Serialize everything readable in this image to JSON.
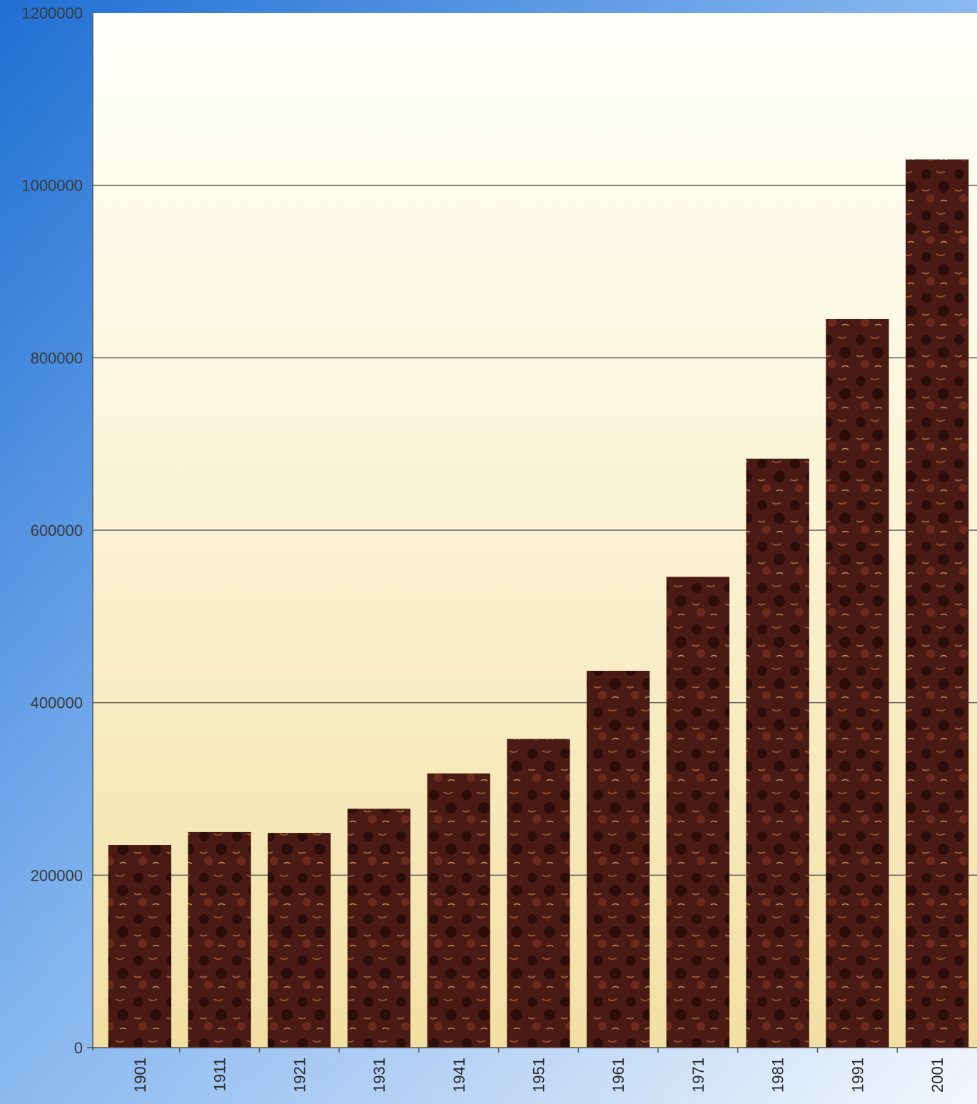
{
  "chart_data": {
    "type": "bar",
    "title": "",
    "xlabel": "",
    "ylabel": "",
    "categories": [
      "1901",
      "1911",
      "1921",
      "1931",
      "1941",
      "1951",
      "1961",
      "1971",
      "1981",
      "1991",
      "2001"
    ],
    "values": [
      235000,
      250000,
      249000,
      277000,
      318000,
      358000,
      437000,
      546000,
      683000,
      845000,
      1030000
    ],
    "ylim": [
      0,
      1200000
    ],
    "yticks": [
      "0",
      "200000",
      "400000",
      "600000",
      "800000",
      "1000000",
      "1200000"
    ],
    "grid": true,
    "legend": "none",
    "colors": {
      "bar": "#4a1a14",
      "bar_highlight": "#7a3524",
      "plot_bg_top": "#fffffa",
      "plot_bg_bottom": "#f2dfa3",
      "frame_blue": "#1f6fd3",
      "gridline": "#5c5c5c"
    }
  }
}
